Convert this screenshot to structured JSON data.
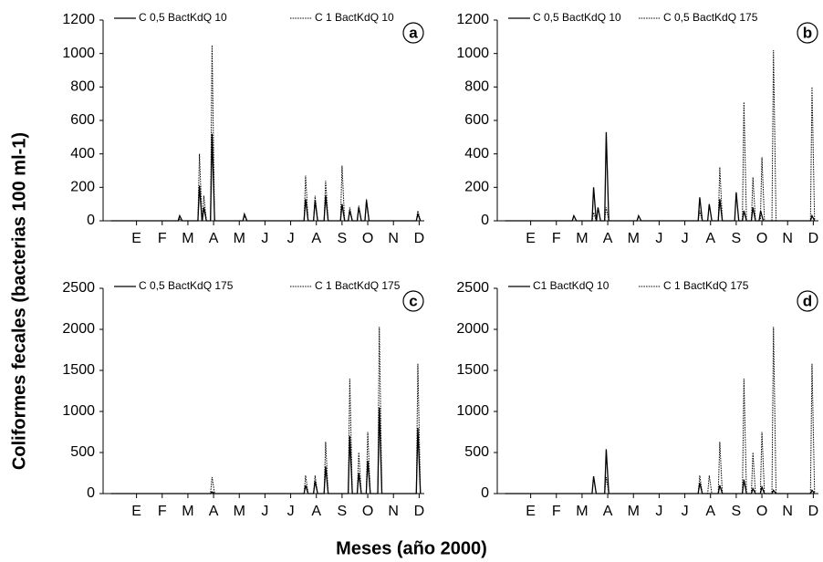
{
  "y_axis_label": "Coliformes fecales (bacterias 100 ml-1)",
  "x_axis_label": "Meses (año 2000)",
  "chart_data": [
    {
      "type": "line",
      "label": "a",
      "xlim": [
        -0.3,
        12.2
      ],
      "xticks": [
        {
          "value": 1,
          "label": "E"
        },
        {
          "value": 2,
          "label": "F"
        },
        {
          "value": 3,
          "label": "M"
        },
        {
          "value": 4,
          "label": "A"
        },
        {
          "value": 5,
          "label": "M"
        },
        {
          "value": 6,
          "label": "J"
        },
        {
          "value": 7,
          "label": "J"
        },
        {
          "value": 8,
          "label": "A"
        },
        {
          "value": 9,
          "label": "S"
        },
        {
          "value": 10,
          "label": "O"
        },
        {
          "value": 11,
          "label": "N"
        },
        {
          "value": 12,
          "label": "D"
        }
      ],
      "ylim": [
        0,
        1200
      ],
      "yticks": [
        0,
        200,
        400,
        600,
        800,
        1000,
        1200
      ],
      "series": [
        {
          "name": "C 0,5 BactKdQ 10",
          "color": "#000000",
          "style": "solid",
          "x": [
            0,
            2.62,
            2.68,
            2.78,
            3.39,
            3.45,
            3.55,
            3.56,
            3.62,
            3.72,
            3.88,
            3.94,
            4.04,
            5.14,
            5.2,
            5.3,
            7.52,
            7.58,
            7.68,
            7.89,
            7.95,
            8.05,
            8.3,
            8.36,
            8.46,
            8.94,
            9.0,
            9.1,
            9.24,
            9.3,
            9.4,
            9.59,
            9.65,
            9.75,
            9.89,
            9.95,
            10.05,
            11.89,
            11.95,
            12.05
          ],
          "values": [
            0,
            0,
            30,
            0,
            0,
            210,
            0,
            0,
            80,
            0,
            0,
            520,
            0,
            0,
            40,
            0,
            0,
            130,
            0,
            0,
            120,
            0,
            0,
            150,
            0,
            0,
            100,
            0,
            0,
            60,
            0,
            0,
            80,
            0,
            0,
            120,
            0,
            0,
            40,
            0
          ]
        },
        {
          "name": "C 1 BactKdQ 10",
          "color": "#000000",
          "style": "dotted",
          "x": [
            0,
            2.62,
            2.68,
            2.78,
            3.39,
            3.45,
            3.55,
            3.56,
            3.62,
            3.72,
            3.88,
            3.94,
            4.04,
            5.14,
            5.2,
            5.3,
            7.52,
            7.58,
            7.68,
            7.89,
            7.95,
            8.05,
            8.3,
            8.36,
            8.46,
            8.94,
            9.0,
            9.1,
            9.24,
            9.3,
            9.4,
            9.59,
            9.65,
            9.75,
            9.89,
            9.95,
            10.05,
            11.89,
            11.95,
            12.05
          ],
          "values": [
            0,
            0,
            10,
            0,
            0,
            400,
            0,
            0,
            150,
            0,
            0,
            1050,
            0,
            0,
            30,
            0,
            0,
            270,
            0,
            0,
            150,
            0,
            0,
            240,
            0,
            0,
            330,
            0,
            0,
            80,
            0,
            0,
            90,
            0,
            0,
            130,
            0,
            0,
            60,
            0
          ]
        }
      ]
    },
    {
      "type": "line",
      "label": "b",
      "xlim": [
        -0.3,
        12.2
      ],
      "xticks": [
        {
          "value": 1,
          "label": "E"
        },
        {
          "value": 2,
          "label": "F"
        },
        {
          "value": 3,
          "label": "M"
        },
        {
          "value": 4,
          "label": "A"
        },
        {
          "value": 5,
          "label": "M"
        },
        {
          "value": 6,
          "label": "J"
        },
        {
          "value": 7,
          "label": "J"
        },
        {
          "value": 8,
          "label": "A"
        },
        {
          "value": 9,
          "label": "S"
        },
        {
          "value": 10,
          "label": "O"
        },
        {
          "value": 11,
          "label": "N"
        },
        {
          "value": 12,
          "label": "D"
        }
      ],
      "ylim": [
        0,
        1200
      ],
      "yticks": [
        0,
        200,
        400,
        600,
        800,
        1000,
        1200
      ],
      "series": [
        {
          "name": "C 0,5 BactKdQ 10",
          "color": "#000000",
          "style": "solid",
          "x": [
            0,
            2.62,
            2.68,
            2.78,
            3.39,
            3.45,
            3.55,
            3.56,
            3.62,
            3.72,
            3.88,
            3.94,
            4.04,
            5.14,
            5.2,
            5.3,
            7.52,
            7.58,
            7.68,
            7.89,
            7.95,
            8.05,
            8.3,
            8.36,
            8.46,
            8.94,
            9.0,
            9.1,
            9.24,
            9.3,
            9.4,
            9.59,
            9.65,
            9.75,
            9.89,
            9.95,
            10.05,
            11.89,
            11.95,
            12.05
          ],
          "values": [
            0,
            0,
            30,
            0,
            0,
            200,
            0,
            0,
            80,
            0,
            0,
            530,
            0,
            0,
            30,
            0,
            0,
            140,
            0,
            0,
            100,
            0,
            0,
            130,
            0,
            0,
            170,
            0,
            0,
            60,
            0,
            0,
            80,
            0,
            0,
            60,
            0,
            0,
            30,
            0
          ]
        },
        {
          "name": "C 0,5 BactKdQ 175",
          "color": "#000000",
          "style": "dotted",
          "x": [
            0,
            3.39,
            3.45,
            3.55,
            3.88,
            3.94,
            4.04,
            7.52,
            7.58,
            7.68,
            8.3,
            8.36,
            8.46,
            9.24,
            9.3,
            9.4,
            9.59,
            9.65,
            9.75,
            9.94,
            10.0,
            10.1,
            10.39,
            10.45,
            10.55,
            11.89,
            11.95,
            12.05
          ],
          "values": [
            0,
            0,
            50,
            0,
            0,
            80,
            0,
            0,
            60,
            0,
            0,
            320,
            0,
            0,
            710,
            0,
            0,
            260,
            0,
            0,
            380,
            0,
            0,
            1020,
            0,
            0,
            800,
            0
          ]
        }
      ]
    },
    {
      "type": "line",
      "label": "c",
      "xlim": [
        -0.3,
        12.2
      ],
      "xticks": [
        {
          "value": 1,
          "label": "E"
        },
        {
          "value": 2,
          "label": "F"
        },
        {
          "value": 3,
          "label": "M"
        },
        {
          "value": 4,
          "label": "A"
        },
        {
          "value": 5,
          "label": "M"
        },
        {
          "value": 6,
          "label": "J"
        },
        {
          "value": 7,
          "label": "J"
        },
        {
          "value": 8,
          "label": "A"
        },
        {
          "value": 9,
          "label": "S"
        },
        {
          "value": 10,
          "label": "O"
        },
        {
          "value": 11,
          "label": "N"
        },
        {
          "value": 12,
          "label": "D"
        }
      ],
      "ylim": [
        0,
        2500
      ],
      "yticks": [
        0,
        500,
        1000,
        1500,
        2000,
        2500
      ],
      "series": [
        {
          "name": "C 0,5 BactKdQ 175",
          "color": "#000000",
          "style": "solid",
          "x": [
            0,
            3.88,
            3.94,
            4.04,
            7.52,
            7.58,
            7.68,
            7.89,
            7.95,
            8.05,
            8.3,
            8.36,
            8.46,
            9.24,
            9.3,
            9.4,
            9.59,
            9.65,
            9.75,
            9.94,
            10.0,
            10.1,
            10.39,
            10.45,
            10.55,
            11.89,
            11.95,
            12.05
          ],
          "values": [
            0,
            0,
            20,
            0,
            0,
            100,
            0,
            0,
            150,
            0,
            0,
            330,
            0,
            0,
            700,
            0,
            0,
            250,
            0,
            0,
            400,
            0,
            0,
            1050,
            0,
            0,
            800,
            0
          ]
        },
        {
          "name": "C 1 BactKdQ 175",
          "color": "#000000",
          "style": "dotted",
          "x": [
            0,
            3.88,
            3.94,
            4.04,
            7.52,
            7.58,
            7.68,
            7.89,
            7.95,
            8.05,
            8.3,
            8.36,
            8.46,
            9.24,
            9.3,
            9.4,
            9.59,
            9.65,
            9.75,
            9.94,
            10.0,
            10.1,
            10.39,
            10.45,
            10.55,
            11.89,
            11.95,
            12.05
          ],
          "values": [
            0,
            0,
            200,
            0,
            0,
            220,
            0,
            0,
            220,
            0,
            0,
            630,
            0,
            0,
            1400,
            0,
            0,
            500,
            0,
            0,
            750,
            0,
            0,
            2030,
            0,
            0,
            1580,
            0
          ]
        }
      ]
    },
    {
      "type": "line",
      "label": "d",
      "xlim": [
        -0.3,
        12.2
      ],
      "xticks": [
        {
          "value": 1,
          "label": "E"
        },
        {
          "value": 2,
          "label": "F"
        },
        {
          "value": 3,
          "label": "M"
        },
        {
          "value": 4,
          "label": "A"
        },
        {
          "value": 5,
          "label": "M"
        },
        {
          "value": 6,
          "label": "J"
        },
        {
          "value": 7,
          "label": "J"
        },
        {
          "value": 8,
          "label": "A"
        },
        {
          "value": 9,
          "label": "S"
        },
        {
          "value": 10,
          "label": "O"
        },
        {
          "value": 11,
          "label": "N"
        },
        {
          "value": 12,
          "label": "D"
        }
      ],
      "ylim": [
        0,
        2500
      ],
      "yticks": [
        0,
        500,
        1000,
        1500,
        2000,
        2500
      ],
      "series": [
        {
          "name": "C1 BactKdQ 10",
          "color": "#000000",
          "style": "solid",
          "x": [
            0,
            3.39,
            3.45,
            3.55,
            3.88,
            3.94,
            4.04,
            7.52,
            7.58,
            7.68,
            8.3,
            8.36,
            8.46,
            9.24,
            9.3,
            9.4,
            9.59,
            9.65,
            9.75,
            9.94,
            10.0,
            10.1,
            10.39,
            10.45,
            10.55,
            11.89,
            11.95,
            12.05
          ],
          "values": [
            0,
            0,
            210,
            0,
            0,
            540,
            0,
            0,
            130,
            0,
            0,
            100,
            0,
            0,
            170,
            0,
            0,
            60,
            0,
            0,
            80,
            0,
            0,
            40,
            0,
            0,
            40,
            0
          ]
        },
        {
          "name": "C 1 BactKdQ 175",
          "color": "#000000",
          "style": "dotted",
          "x": [
            0,
            3.88,
            3.94,
            4.04,
            7.52,
            7.58,
            7.68,
            7.89,
            7.95,
            8.05,
            8.3,
            8.36,
            8.46,
            9.24,
            9.3,
            9.4,
            9.59,
            9.65,
            9.75,
            9.94,
            10.0,
            10.1,
            10.39,
            10.45,
            10.55,
            11.89,
            11.95,
            12.05
          ],
          "values": [
            0,
            0,
            200,
            0,
            0,
            220,
            0,
            0,
            220,
            0,
            0,
            630,
            0,
            0,
            1400,
            0,
            0,
            500,
            0,
            0,
            750,
            0,
            0,
            2030,
            0,
            0,
            1580,
            0
          ]
        }
      ]
    }
  ]
}
